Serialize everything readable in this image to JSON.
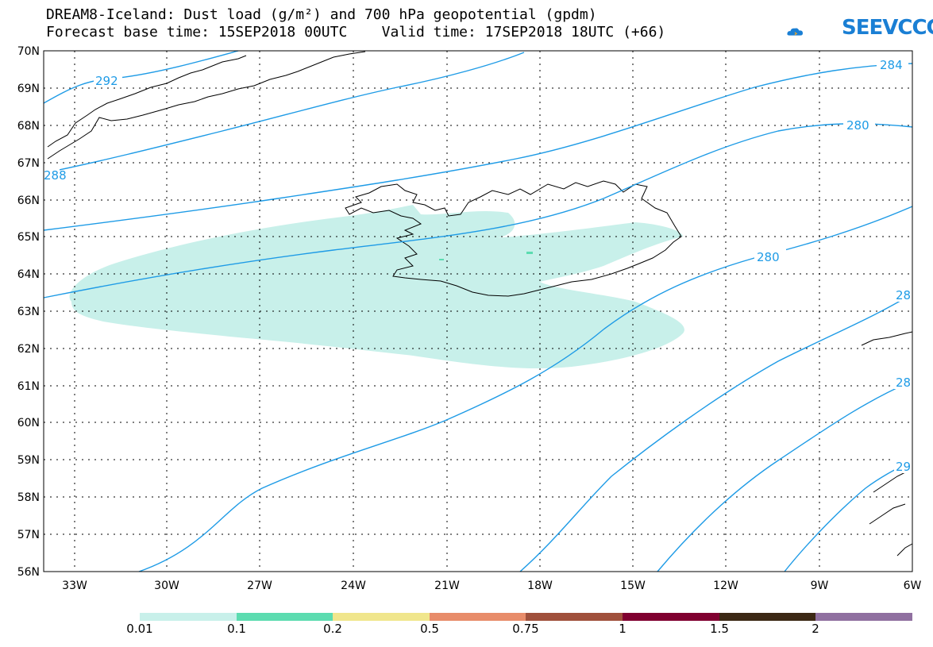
{
  "header": {
    "title_line1": "DREAM8-Iceland: Dust load (g/m²) and 700 hPa geopotential (gpdm)",
    "title_line2": "Forecast base time: 15SEP2018 00UTC    Valid time: 17SEP2018 18UTC (+66)"
  },
  "logo": {
    "text": "SEEVCCC",
    "icon": "cloud-icon",
    "color": "#1a7fd4"
  },
  "map": {
    "lat_labels": [
      "70N",
      "69N",
      "68N",
      "67N",
      "66N",
      "65N",
      "64N",
      "63N",
      "62N",
      "61N",
      "60N",
      "59N",
      "58N",
      "57N",
      "56N"
    ],
    "lon_labels": [
      "33W",
      "30W",
      "27W",
      "24W",
      "21W",
      "18W",
      "15W",
      "12W",
      "9W",
      "6W"
    ],
    "contour_color": "#1e9be6",
    "dust_color": "#c8f0ea",
    "contour_labels": [
      "292",
      "288",
      "284",
      "280",
      "280",
      "28",
      "28",
      "29"
    ]
  },
  "colorbar": {
    "colors": [
      "#c8f0ea",
      "#5cdcb0",
      "#f0e68c",
      "#e88c6a",
      "#a0503c",
      "#800030",
      "#3c2814",
      "#9070a0"
    ],
    "labels": [
      "0.01",
      "0.1",
      "0.2",
      "0.5",
      "0.75",
      "1",
      "1.5",
      "2"
    ]
  }
}
